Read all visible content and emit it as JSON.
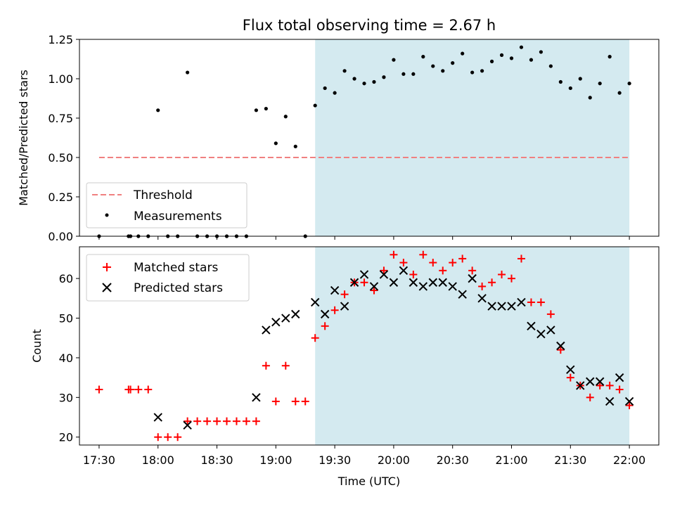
{
  "chart_data": [
    {
      "type": "scatter",
      "title": "Flux total observing time = 2.67 h",
      "xlabel": "",
      "ylabel": "Matched/Predicted stars",
      "xlim": [
        "17:20",
        "22:15"
      ],
      "ylim": [
        0,
        1.25
      ],
      "yticks": [
        "0.00",
        "0.25",
        "0.50",
        "0.75",
        "1.00",
        "1.25"
      ],
      "legend_position": "lower-left",
      "threshold": {
        "name": "Threshold",
        "value": 0.5,
        "x_start": "17:30",
        "x_end": "22:00",
        "color": "#f08080",
        "style": "dashed"
      },
      "observing_window": {
        "start": "19:20",
        "end": "22:00",
        "color": "#d4eaf0"
      },
      "series": [
        {
          "name": "Measurements",
          "color": "#000000",
          "marker": "dot",
          "x": [
            "17:30",
            "17:45",
            "17:46",
            "17:50",
            "17:55",
            "18:00",
            "18:05",
            "18:10",
            "18:15",
            "18:20",
            "18:25",
            "18:30",
            "18:35",
            "18:40",
            "18:45",
            "18:50",
            "18:55",
            "19:00",
            "19:05",
            "19:10",
            "19:15",
            "19:20",
            "19:25",
            "19:30",
            "19:35",
            "19:40",
            "19:45",
            "19:50",
            "19:55",
            "20:00",
            "20:05",
            "20:10",
            "20:15",
            "20:20",
            "20:25",
            "20:30",
            "20:35",
            "20:40",
            "20:45",
            "20:50",
            "20:55",
            "21:00",
            "21:05",
            "21:10",
            "21:15",
            "21:20",
            "21:25",
            "21:30",
            "21:35",
            "21:40",
            "21:45",
            "21:50",
            "21:55",
            "22:00"
          ],
          "y": [
            0,
            0,
            0,
            0,
            0,
            0.8,
            0,
            0,
            1.04,
            0,
            0,
            0,
            0,
            0,
            0,
            0.8,
            0.81,
            0.59,
            0.76,
            0.57,
            0,
            0.83,
            0.94,
            0.91,
            1.05,
            1.0,
            0.97,
            0.98,
            1.01,
            1.12,
            1.03,
            1.03,
            1.14,
            1.08,
            1.05,
            1.1,
            1.16,
            1.04,
            1.05,
            1.11,
            1.15,
            1.13,
            1.2,
            1.12,
            1.17,
            1.08,
            0.98,
            0.94,
            1.0,
            0.88,
            0.97,
            1.14,
            0.91,
            0.97
          ]
        }
      ]
    },
    {
      "type": "scatter",
      "title": "",
      "xlabel": "Time (UTC)",
      "ylabel": "Count",
      "xlim": [
        "17:20",
        "22:15"
      ],
      "ylim": [
        18,
        68
      ],
      "xticks": [
        "17:30",
        "18:00",
        "18:30",
        "19:00",
        "19:30",
        "20:00",
        "20:30",
        "21:00",
        "21:30",
        "22:00"
      ],
      "yticks": [
        "20",
        "30",
        "40",
        "50",
        "60"
      ],
      "legend_position": "top-left",
      "observing_window": {
        "start": "19:20",
        "end": "22:00",
        "color": "#d4eaf0"
      },
      "series": [
        {
          "name": "Matched stars",
          "color": "#ff0000",
          "marker": "plus",
          "x": [
            "17:30",
            "17:45",
            "17:46",
            "17:50",
            "17:55",
            "18:00",
            "18:05",
            "18:10",
            "18:15",
            "18:20",
            "18:25",
            "18:30",
            "18:35",
            "18:40",
            "18:45",
            "18:50",
            "18:55",
            "19:00",
            "19:05",
            "19:10",
            "19:15",
            "19:20",
            "19:25",
            "19:30",
            "19:35",
            "19:40",
            "19:45",
            "19:50",
            "19:55",
            "20:00",
            "20:05",
            "20:10",
            "20:15",
            "20:20",
            "20:25",
            "20:30",
            "20:35",
            "20:40",
            "20:45",
            "20:50",
            "20:55",
            "21:00",
            "21:05",
            "21:10",
            "21:15",
            "21:20",
            "21:25",
            "21:30",
            "21:35",
            "21:40",
            "21:45",
            "21:50",
            "21:55",
            "22:00"
          ],
          "y": [
            32,
            32,
            32,
            32,
            32,
            20,
            20,
            20,
            24,
            24,
            24,
            24,
            24,
            24,
            24,
            24,
            38,
            29,
            38,
            29,
            29,
            45,
            48,
            52,
            56,
            59,
            59,
            57,
            62,
            66,
            64,
            61,
            66,
            64,
            62,
            64,
            65,
            62,
            58,
            59,
            61,
            60,
            65,
            54,
            54,
            51,
            42,
            35,
            33,
            30,
            33,
            33,
            32,
            28
          ]
        },
        {
          "name": "Predicted stars",
          "color": "#000000",
          "marker": "x",
          "x": [
            "18:00",
            "18:15",
            "18:50",
            "18:55",
            "19:00",
            "19:05",
            "19:10",
            "19:20",
            "19:25",
            "19:30",
            "19:35",
            "19:40",
            "19:45",
            "19:50",
            "19:55",
            "20:00",
            "20:05",
            "20:10",
            "20:15",
            "20:20",
            "20:25",
            "20:30",
            "20:35",
            "20:40",
            "20:45",
            "20:50",
            "20:55",
            "21:00",
            "21:05",
            "21:10",
            "21:15",
            "21:20",
            "21:25",
            "21:30",
            "21:35",
            "21:40",
            "21:45",
            "21:50",
            "21:55",
            "22:00"
          ],
          "y": [
            25,
            23,
            30,
            47,
            49,
            50,
            51,
            54,
            51,
            57,
            53,
            59,
            61,
            58,
            61,
            59,
            62,
            59,
            58,
            59,
            59,
            58,
            56,
            60,
            55,
            53,
            53,
            53,
            54,
            48,
            46,
            47,
            43,
            37,
            33,
            34,
            34,
            29,
            35,
            29
          ]
        }
      ]
    }
  ]
}
